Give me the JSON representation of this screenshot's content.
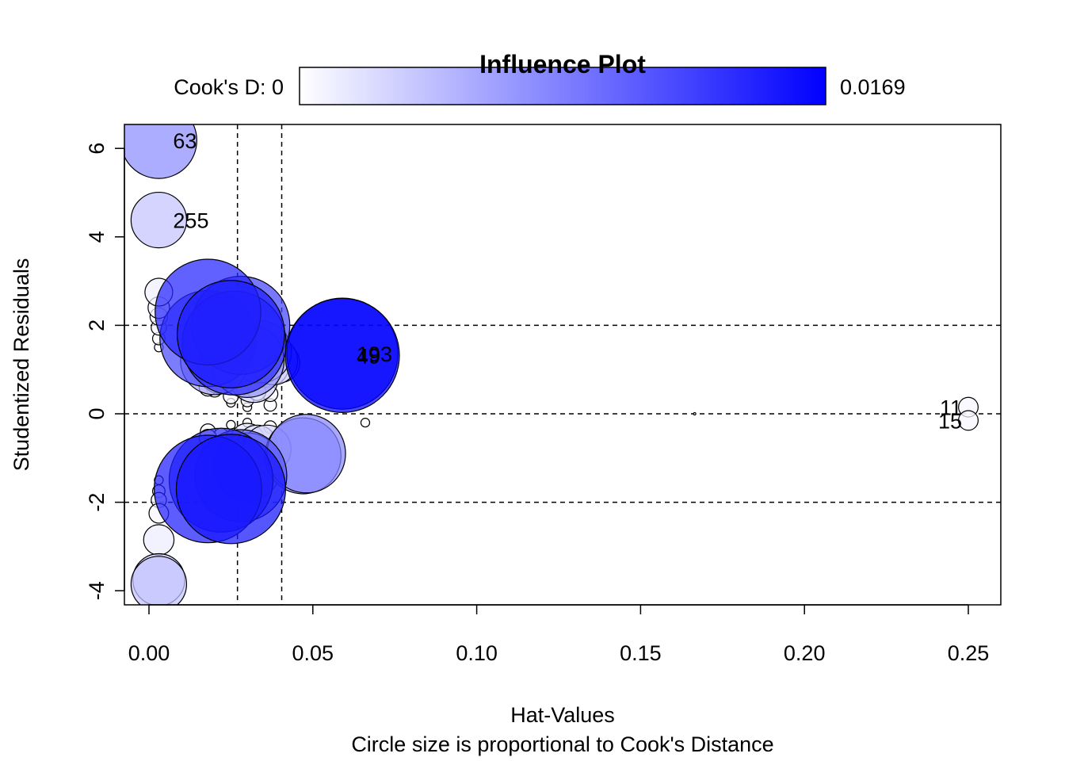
{
  "chart_data": {
    "type": "scatter",
    "title": "Influence Plot",
    "xlabel": "Hat-Values",
    "ylabel": "Studentized Residuals",
    "subtitle": "Circle size is proportional to Cook's Distance",
    "xlim": [
      -0.007,
      0.26
    ],
    "ylim": [
      -4.4,
      6.55
    ],
    "x_ticks": [
      0.0,
      0.05,
      0.1,
      0.15,
      0.2,
      0.25
    ],
    "x_tick_labels": [
      "0.00",
      "0.05",
      "0.10",
      "0.15",
      "0.20",
      "0.25"
    ],
    "y_ticks": [
      -4,
      -2,
      0,
      2,
      4,
      6
    ],
    "y_tick_labels": [
      "-4",
      "-2",
      "0",
      "2",
      "4",
      "6"
    ],
    "reference_lines": {
      "vertical": [
        0.027,
        0.0405
      ],
      "horizontal": [
        -2,
        0,
        2
      ]
    },
    "colorbar": {
      "label_min": "Cook's D: 0",
      "label_max": "0.0169",
      "color_low": "#ffffff",
      "color_high": "#0000ff"
    },
    "points": [
      {
        "x": 0.003,
        "y": 6.18,
        "d": 0.0075,
        "label": "63"
      },
      {
        "x": 0.003,
        "y": 4.38,
        "d": 0.004,
        "label": "255"
      },
      {
        "x": 0.003,
        "y": 2.75,
        "d": 0.001
      },
      {
        "x": 0.003,
        "y": 2.4,
        "d": 0.0006
      },
      {
        "x": 0.003,
        "y": 2.2,
        "d": 0.0004
      },
      {
        "x": 0.003,
        "y": 1.95,
        "d": 0.0003
      },
      {
        "x": 0.003,
        "y": 1.7,
        "d": 0.0002
      },
      {
        "x": 0.003,
        "y": 1.5,
        "d": 0.0001
      },
      {
        "x": 0.003,
        "y": -1.5,
        "d": 0.0001
      },
      {
        "x": 0.003,
        "y": -1.75,
        "d": 0.0002
      },
      {
        "x": 0.003,
        "y": -1.95,
        "d": 0.0003
      },
      {
        "x": 0.003,
        "y": -2.25,
        "d": 0.0005
      },
      {
        "x": 0.003,
        "y": -2.85,
        "d": 0.0012
      },
      {
        "x": 0.003,
        "y": -3.75,
        "d": 0.0035
      },
      {
        "x": 0.003,
        "y": -3.85,
        "d": 0.004
      },
      {
        "x": 0.018,
        "y": 2.3,
        "d": 0.0145
      },
      {
        "x": 0.018,
        "y": 1.7,
        "d": 0.012
      },
      {
        "x": 0.02,
        "y": 1.2,
        "d": 0.006
      },
      {
        "x": 0.022,
        "y": 1.0,
        "d": 0.003
      },
      {
        "x": 0.025,
        "y": 1.8,
        "d": 0.015
      },
      {
        "x": 0.026,
        "y": 1.6,
        "d": 0.014
      },
      {
        "x": 0.028,
        "y": 2.0,
        "d": 0.0125
      },
      {
        "x": 0.03,
        "y": 1.2,
        "d": 0.007
      },
      {
        "x": 0.032,
        "y": 0.8,
        "d": 0.003
      },
      {
        "x": 0.034,
        "y": 1.4,
        "d": 0.005
      },
      {
        "x": 0.036,
        "y": 1.1,
        "d": 0.0025
      },
      {
        "x": 0.038,
        "y": 1.2,
        "d": 0.003
      },
      {
        "x": 0.04,
        "y": 1.15,
        "d": 0.002
      },
      {
        "x": 0.018,
        "y": 0.6,
        "d": 0.0004
      },
      {
        "x": 0.02,
        "y": 0.55,
        "d": 0.0003
      },
      {
        "x": 0.025,
        "y": 0.4,
        "d": 0.0003
      },
      {
        "x": 0.03,
        "y": 0.3,
        "d": 0.0002
      },
      {
        "x": 0.033,
        "y": 0.5,
        "d": 0.0004
      },
      {
        "x": 0.037,
        "y": 0.45,
        "d": 0.0003
      },
      {
        "x": 0.037,
        "y": 0.2,
        "d": 0.0002
      },
      {
        "x": 0.025,
        "y": 0.25,
        "d": 0.0001
      },
      {
        "x": 0.03,
        "y": 0.15,
        "d": 0.0001
      },
      {
        "x": 0.025,
        "y": -0.25,
        "d": 0.0001
      },
      {
        "x": 0.03,
        "y": -0.2,
        "d": 0.0001
      },
      {
        "x": 0.037,
        "y": -0.3,
        "d": 0.0002
      },
      {
        "x": 0.018,
        "y": -0.4,
        "d": 0.0003
      },
      {
        "x": 0.018,
        "y": -0.55,
        "d": 0.0004
      },
      {
        "x": 0.022,
        "y": -0.5,
        "d": 0.0003
      },
      {
        "x": 0.026,
        "y": -0.5,
        "d": 0.0003
      },
      {
        "x": 0.03,
        "y": -0.6,
        "d": 0.0015
      },
      {
        "x": 0.033,
        "y": -0.7,
        "d": 0.002
      },
      {
        "x": 0.036,
        "y": -0.8,
        "d": 0.003
      },
      {
        "x": 0.047,
        "y": -0.95,
        "d": 0.0075
      },
      {
        "x": 0.048,
        "y": -0.9,
        "d": 0.008
      },
      {
        "x": 0.018,
        "y": -1.7,
        "d": 0.015
      },
      {
        "x": 0.022,
        "y": -1.5,
        "d": 0.014
      },
      {
        "x": 0.025,
        "y": -1.7,
        "d": 0.0155
      },
      {
        "x": 0.028,
        "y": -1.4,
        "d": 0.011
      },
      {
        "x": 0.03,
        "y": -1.2,
        "d": 0.006
      },
      {
        "x": 0.059,
        "y": 1.32,
        "d": 0.0169,
        "label": "49"
      },
      {
        "x": 0.059,
        "y": 1.36,
        "d": 0.016,
        "label": "193"
      },
      {
        "x": 0.066,
        "y": -0.2,
        "d": 0.0001
      },
      {
        "x": 0.1665,
        "y": 0.0,
        "d": 0.0
      },
      {
        "x": 0.25,
        "y": 0.15,
        "d": 0.0005,
        "label": "11"
      },
      {
        "x": 0.25,
        "y": -0.15,
        "d": 0.0005,
        "label": "15"
      }
    ]
  }
}
